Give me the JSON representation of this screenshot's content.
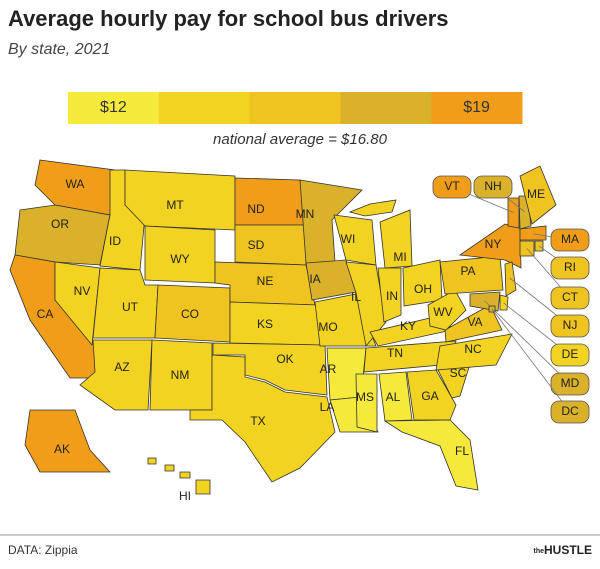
{
  "title": "Average hourly pay for school bus drivers",
  "subtitle": "By state, 2021",
  "legend": {
    "colors": [
      "#f5ea3c",
      "#f2d321",
      "#efc320",
      "#d9b12a",
      "#f09e1a"
    ],
    "low_label": "$12",
    "high_label": "$19"
  },
  "note": "national average = $16.80",
  "states": [
    {
      "label": "WA",
      "color": "#f09e1a"
    },
    {
      "label": "OR",
      "color": "#d9b12a"
    },
    {
      "label": "CA",
      "color": "#f09e1a"
    },
    {
      "label": "NV",
      "color": "#f2d321"
    },
    {
      "label": "ID",
      "color": "#f2d321"
    },
    {
      "label": "MT",
      "color": "#f2d321"
    },
    {
      "label": "WY",
      "color": "#f2d321"
    },
    {
      "label": "UT",
      "color": "#f2d321"
    },
    {
      "label": "CO",
      "color": "#efc320"
    },
    {
      "label": "AZ",
      "color": "#f2d321"
    },
    {
      "label": "NM",
      "color": "#f2d321"
    },
    {
      "label": "ND",
      "color": "#f09e1a"
    },
    {
      "label": "SD",
      "color": "#efc320"
    },
    {
      "label": "NE",
      "color": "#efc320"
    },
    {
      "label": "KS",
      "color": "#f2d321"
    },
    {
      "label": "OK",
      "color": "#f2d321"
    },
    {
      "label": "TX",
      "color": "#f2d321"
    },
    {
      "label": "MN",
      "color": "#d9b12a"
    },
    {
      "label": "IA",
      "color": "#d9b12a"
    },
    {
      "label": "MO",
      "color": "#f2d321"
    },
    {
      "label": "AR",
      "color": "#f5ea3c"
    },
    {
      "label": "LA",
      "color": "#f5ea3c"
    },
    {
      "label": "WI",
      "color": "#f2d321"
    },
    {
      "label": "IL",
      "color": "#f2d321"
    },
    {
      "label": "IN",
      "color": "#f2d321"
    },
    {
      "label": "MI",
      "color": "#f2d321"
    },
    {
      "label": "OH",
      "color": "#f2d321"
    },
    {
      "label": "KY",
      "color": "#f2d321"
    },
    {
      "label": "TN",
      "color": "#f2d321"
    },
    {
      "label": "MS",
      "color": "#f5ea3c"
    },
    {
      "label": "AL",
      "color": "#f5ea3c"
    },
    {
      "label": "GA",
      "color": "#f2d321"
    },
    {
      "label": "FL",
      "color": "#f5ea3c"
    },
    {
      "label": "SC",
      "color": "#f2d321"
    },
    {
      "label": "NC",
      "color": "#f2d321"
    },
    {
      "label": "VA",
      "color": "#efc320"
    },
    {
      "label": "WV",
      "color": "#f2d321"
    },
    {
      "label": "PA",
      "color": "#efc320"
    },
    {
      "label": "NY",
      "color": "#f09e1a"
    },
    {
      "label": "VT",
      "color": "#f09e1a"
    },
    {
      "label": "NH",
      "color": "#d9b12a"
    },
    {
      "label": "ME",
      "color": "#efc320"
    },
    {
      "label": "MA",
      "color": "#f09e1a"
    },
    {
      "label": "RI",
      "color": "#efc320"
    },
    {
      "label": "CT",
      "color": "#efc320"
    },
    {
      "label": "NJ",
      "color": "#efc320"
    },
    {
      "label": "DE",
      "color": "#f2d321"
    },
    {
      "label": "MD",
      "color": "#d9b12a"
    },
    {
      "label": "DC",
      "color": "#d9b12a"
    },
    {
      "label": "AK",
      "color": "#f09e1a"
    },
    {
      "label": "HI",
      "color": "#f2d321"
    }
  ],
  "source": "DATA: Zippia",
  "brand_small": "the",
  "brand": "HUSTLE"
}
